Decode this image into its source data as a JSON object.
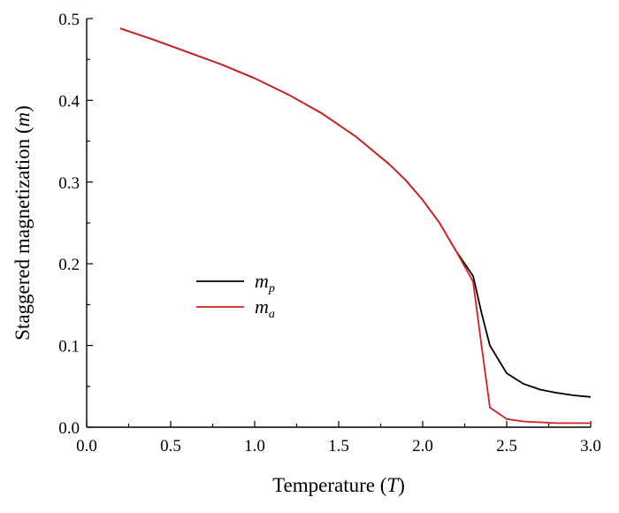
{
  "chart_data": {
    "type": "line",
    "xlabel": {
      "prefix": "Temperature (",
      "var": "T",
      "suffix": ")"
    },
    "ylabel": {
      "prefix": "Staggered magnetization (",
      "var": "m",
      "suffix": ")"
    },
    "xlim": [
      0.0,
      3.0
    ],
    "ylim": [
      0.0,
      0.5
    ],
    "xticks": [
      "0.0",
      "0.5",
      "1.0",
      "1.5",
      "2.0",
      "2.5",
      "3.0"
    ],
    "yticks": [
      "0.0",
      "0.1",
      "0.2",
      "0.3",
      "0.4",
      "0.5"
    ],
    "grid": false,
    "legend_position": "center-left",
    "series": [
      {
        "name": "m_p",
        "label_main": "m",
        "label_sub": "p",
        "color": "#000000",
        "x": [
          0.2,
          0.4,
          0.6,
          0.8,
          1.0,
          1.2,
          1.4,
          1.6,
          1.8,
          1.9,
          2.0,
          2.1,
          2.2,
          2.3,
          2.35,
          2.4,
          2.5,
          2.6,
          2.7,
          2.8,
          2.9,
          3.0
        ],
        "y": [
          0.488,
          0.474,
          0.459,
          0.444,
          0.427,
          0.407,
          0.384,
          0.356,
          0.322,
          0.302,
          0.278,
          0.25,
          0.215,
          0.185,
          0.14,
          0.1,
          0.066,
          0.053,
          0.046,
          0.042,
          0.039,
          0.037
        ]
      },
      {
        "name": "m_a",
        "label_main": "m",
        "label_sub": "a",
        "color": "#d42020",
        "x": [
          0.2,
          0.4,
          0.6,
          0.8,
          1.0,
          1.2,
          1.4,
          1.6,
          1.8,
          1.9,
          2.0,
          2.1,
          2.2,
          2.3,
          2.35,
          2.4,
          2.5,
          2.6,
          2.7,
          2.8,
          2.9,
          3.0
        ],
        "y": [
          0.488,
          0.474,
          0.459,
          0.444,
          0.427,
          0.407,
          0.384,
          0.356,
          0.322,
          0.302,
          0.278,
          0.25,
          0.215,
          0.178,
          0.1,
          0.024,
          0.01,
          0.007,
          0.006,
          0.005,
          0.005,
          0.005
        ]
      }
    ]
  }
}
